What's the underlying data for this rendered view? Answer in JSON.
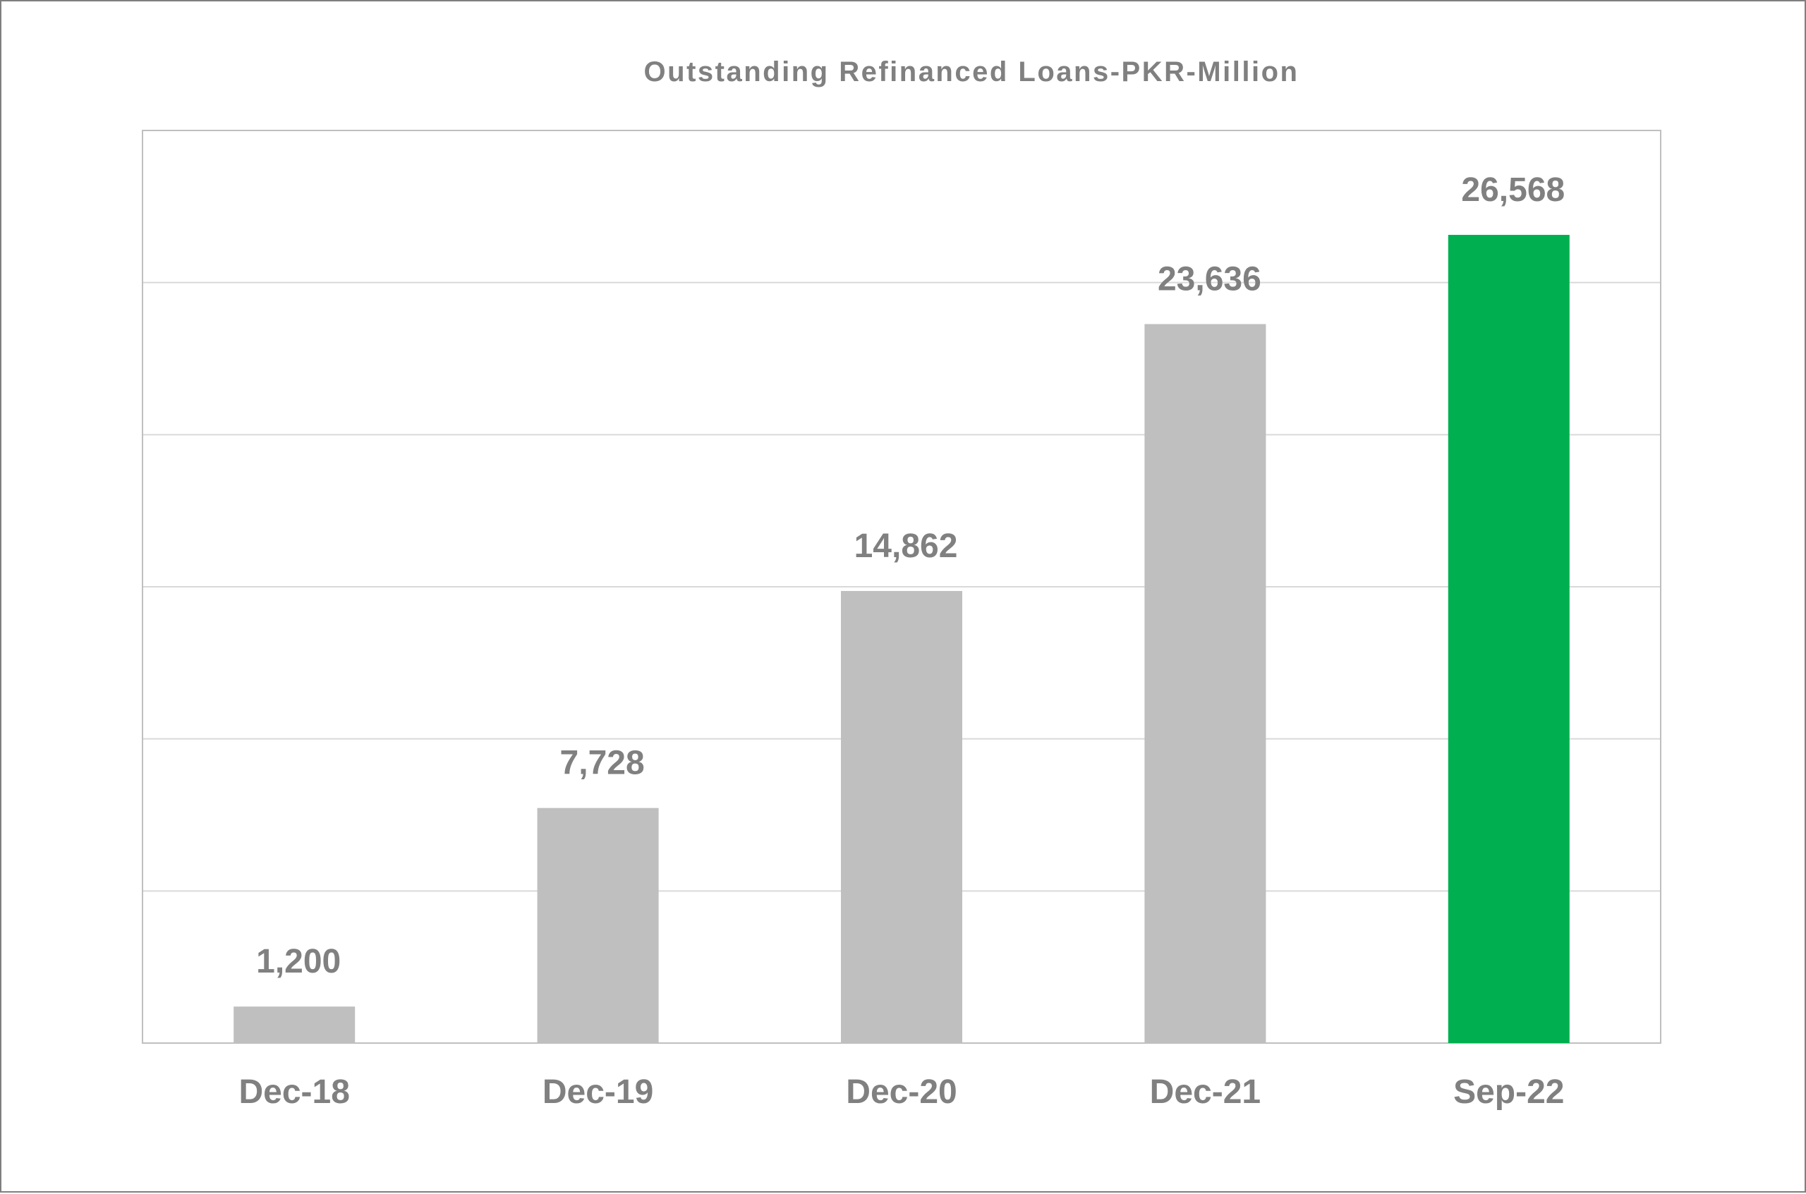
{
  "chart_data": {
    "type": "bar",
    "title": "Outstanding Refinanced Loans-PKR-Million",
    "categories": [
      "Dec-18",
      "Dec-19",
      "Dec-20",
      "Dec-21",
      "Sep-22"
    ],
    "values": [
      1200,
      7728,
      14862,
      23636,
      26568
    ],
    "data_labels": [
      "1,200",
      "7,728",
      "14,862",
      "23,636",
      "26,568"
    ],
    "xlabel": "",
    "ylabel": "",
    "ylim": [
      0,
      30000
    ],
    "y_gridline_step": 5000,
    "y_tick_labels_shown": false,
    "grid": true,
    "legend": "none",
    "colors": {
      "default_bar": "#bfbfbf",
      "highlight_bar": "#00b050",
      "text": "#808080",
      "gridline": "#d9d9d9",
      "plot_border": "#bfbfbf",
      "frame_border": "#7f7f7f"
    },
    "highlight_category": "Sep-22"
  }
}
